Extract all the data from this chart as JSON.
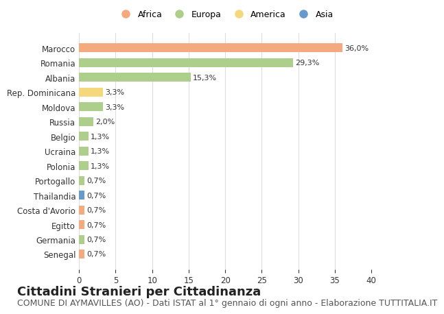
{
  "categories": [
    "Marocco",
    "Romania",
    "Albania",
    "Rep. Dominicana",
    "Moldova",
    "Russia",
    "Belgio",
    "Ucraina",
    "Polonia",
    "Portogallo",
    "Thailandia",
    "Costa d'Avorio",
    "Egitto",
    "Germania",
    "Senegal"
  ],
  "values": [
    36.0,
    29.3,
    15.3,
    3.3,
    3.3,
    2.0,
    1.3,
    1.3,
    1.3,
    0.7,
    0.7,
    0.7,
    0.7,
    0.7,
    0.7
  ],
  "labels": [
    "36,0%",
    "29,3%",
    "15,3%",
    "3,3%",
    "3,3%",
    "2,0%",
    "1,3%",
    "1,3%",
    "1,3%",
    "0,7%",
    "0,7%",
    "0,7%",
    "0,7%",
    "0,7%",
    "0,7%"
  ],
  "continents": [
    "Africa",
    "Europa",
    "Europa",
    "America",
    "Europa",
    "Europa",
    "Europa",
    "Europa",
    "Europa",
    "Europa",
    "Asia",
    "Africa",
    "Africa",
    "Europa",
    "Africa"
  ],
  "colors": {
    "Africa": "#F4A97F",
    "Europa": "#AECF8B",
    "America": "#F5D87E",
    "Asia": "#6699CC"
  },
  "legend_order": [
    "Africa",
    "Europa",
    "America",
    "Asia"
  ],
  "legend_colors": [
    "#F4A97F",
    "#AECF8B",
    "#F5D87E",
    "#6699CC"
  ],
  "xlim": [
    0,
    40
  ],
  "xticks": [
    0,
    5,
    10,
    15,
    20,
    25,
    30,
    35,
    40
  ],
  "background_color": "#FFFFFF",
  "grid_color": "#DDDDDD",
  "title": "Cittadini Stranieri per Cittadinanza",
  "subtitle": "COMUNE DI AYMAVILLES (AO) - Dati ISTAT al 1° gennaio di ogni anno - Elaborazione TUTTITALIA.IT",
  "title_fontsize": 13,
  "subtitle_fontsize": 9,
  "bar_height": 0.6
}
